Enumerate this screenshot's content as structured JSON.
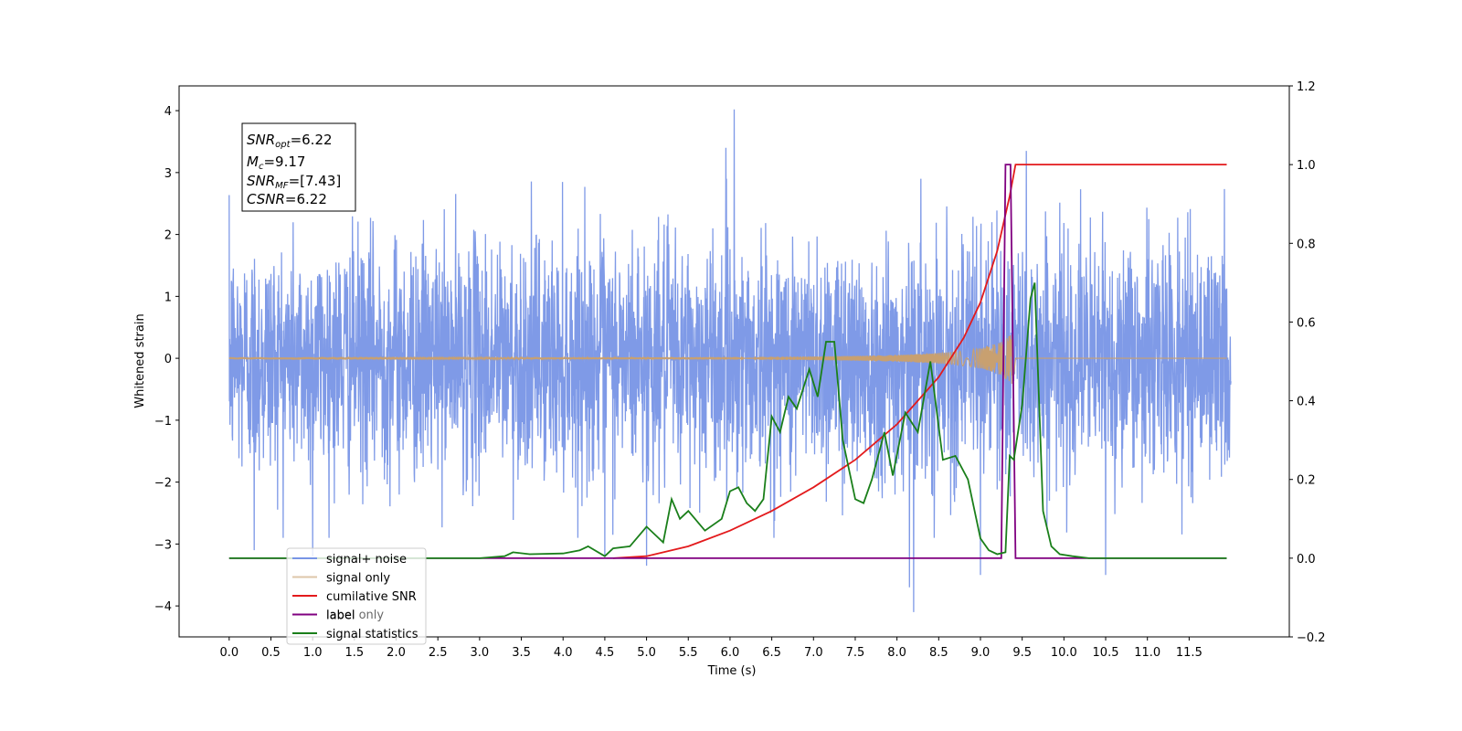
{
  "chart_data": {
    "type": "line",
    "xlabel": "Time (s)",
    "ylabel_left": "Whitened strain",
    "ylabel_right": "",
    "xlim": [
      -0.6,
      12.7
    ],
    "ylim_left": [
      -4.5,
      4.4
    ],
    "ylim_right": [
      -0.2,
      1.2
    ],
    "x_ticks": [
      "0.0",
      "0.5",
      "1.0",
      "1.5",
      "2.0",
      "2.5",
      "3.0",
      "3.5",
      "4.0",
      "4.5",
      "5.0",
      "5.5",
      "6.0",
      "6.5",
      "7.0",
      "7.5",
      "8.0",
      "8.5",
      "9.0",
      "9.5",
      "10.0",
      "10.5",
      "11.0",
      "11.5"
    ],
    "y_ticks_left": [
      "4",
      "3",
      "2",
      "1",
      "0",
      "−1",
      "−2",
      "−3",
      "−4"
    ],
    "y_ticks_right": [
      "1.2",
      "1.0",
      "0.8",
      "0.6",
      "0.4",
      "0.2",
      "0.0",
      "−0.2"
    ],
    "grid": false,
    "legend_position": "lower-left",
    "info_box": {
      "snr_opt": {
        "base": "SNR",
        "sub": "opt",
        "value": "=6.22"
      },
      "mc": {
        "base": "M",
        "sub": "c",
        "value": "=9.17"
      },
      "snr_mf": {
        "base": "SNR",
        "sub": "MF",
        "value": "=[7.43]"
      },
      "csnr": {
        "base": "CSNR",
        "value": "=6.22"
      }
    },
    "series": [
      {
        "name": "signal+ noise",
        "axis": "left",
        "color": "#7895e6",
        "x_range": [
          0.0,
          12.0
        ],
        "noise_std": 0.95,
        "peaks": [
          [
            0.3,
            -3.1
          ],
          [
            1.0,
            -3.2
          ],
          [
            4.5,
            -3.2
          ],
          [
            5.0,
            -3.35
          ],
          [
            6.05,
            4.02
          ],
          [
            5.95,
            3.4
          ],
          [
            8.15,
            -3.7
          ],
          [
            8.2,
            -4.1
          ],
          [
            9.0,
            -3.5
          ],
          [
            9.55,
            3.35
          ],
          [
            10.5,
            -3.5
          ]
        ]
      },
      {
        "name": "signal only",
        "axis": "left",
        "color": "#c8a070",
        "chirp_start": 0.0,
        "chirp_end": 9.4,
        "amp_at_end": 0.45
      },
      {
        "name": "cumilative SNR",
        "axis": "right",
        "color": "#e31a1c",
        "points": [
          [
            4.6,
            0.0
          ],
          [
            5.0,
            0.005
          ],
          [
            5.5,
            0.03
          ],
          [
            6.0,
            0.07
          ],
          [
            6.5,
            0.12
          ],
          [
            7.0,
            0.18
          ],
          [
            7.5,
            0.25
          ],
          [
            8.0,
            0.34
          ],
          [
            8.5,
            0.46
          ],
          [
            8.8,
            0.56
          ],
          [
            9.0,
            0.65
          ],
          [
            9.2,
            0.78
          ],
          [
            9.35,
            0.92
          ],
          [
            9.42,
            1.0
          ],
          [
            11.95,
            1.0
          ]
        ]
      },
      {
        "name": "label",
        "axis": "right",
        "color": "#800080",
        "points": [
          [
            0.0,
            0.0
          ],
          [
            9.25,
            0.0
          ],
          [
            9.3,
            1.0
          ],
          [
            9.36,
            1.0
          ],
          [
            9.42,
            0.0
          ],
          [
            11.95,
            0.0
          ]
        ]
      },
      {
        "name": "signal statistics",
        "axis": "right",
        "color": "#1a7f1a",
        "points": [
          [
            0.0,
            0.0
          ],
          [
            3.0,
            0.0
          ],
          [
            3.3,
            0.005
          ],
          [
            3.4,
            0.015
          ],
          [
            3.6,
            0.01
          ],
          [
            4.0,
            0.012
          ],
          [
            4.2,
            0.02
          ],
          [
            4.3,
            0.03
          ],
          [
            4.5,
            0.005
          ],
          [
            4.6,
            0.025
          ],
          [
            4.8,
            0.03
          ],
          [
            5.0,
            0.08
          ],
          [
            5.2,
            0.04
          ],
          [
            5.3,
            0.15
          ],
          [
            5.4,
            0.1
          ],
          [
            5.5,
            0.12
          ],
          [
            5.7,
            0.07
          ],
          [
            5.9,
            0.1
          ],
          [
            6.0,
            0.17
          ],
          [
            6.1,
            0.18
          ],
          [
            6.2,
            0.14
          ],
          [
            6.3,
            0.12
          ],
          [
            6.4,
            0.15
          ],
          [
            6.5,
            0.36
          ],
          [
            6.6,
            0.32
          ],
          [
            6.7,
            0.41
          ],
          [
            6.8,
            0.38
          ],
          [
            6.95,
            0.48
          ],
          [
            7.05,
            0.41
          ],
          [
            7.15,
            0.55
          ],
          [
            7.25,
            0.55
          ],
          [
            7.35,
            0.3
          ],
          [
            7.5,
            0.15
          ],
          [
            7.6,
            0.14
          ],
          [
            7.7,
            0.2
          ],
          [
            7.85,
            0.32
          ],
          [
            7.95,
            0.21
          ],
          [
            8.1,
            0.37
          ],
          [
            8.25,
            0.32
          ],
          [
            8.4,
            0.5
          ],
          [
            8.55,
            0.25
          ],
          [
            8.7,
            0.26
          ],
          [
            8.85,
            0.2
          ],
          [
            9.0,
            0.05
          ],
          [
            9.1,
            0.02
          ],
          [
            9.2,
            0.01
          ],
          [
            9.3,
            0.015
          ],
          [
            9.35,
            0.26
          ],
          [
            9.4,
            0.25
          ],
          [
            9.5,
            0.39
          ],
          [
            9.6,
            0.66
          ],
          [
            9.65,
            0.7
          ],
          [
            9.75,
            0.12
          ],
          [
            9.85,
            0.03
          ],
          [
            9.95,
            0.01
          ],
          [
            10.1,
            0.005
          ],
          [
            10.3,
            0.0
          ],
          [
            11.95,
            0.0
          ]
        ]
      },
      {
        "name": "label only",
        "axis": "right",
        "color": "#800080",
        "legend_only": true
      }
    ]
  }
}
